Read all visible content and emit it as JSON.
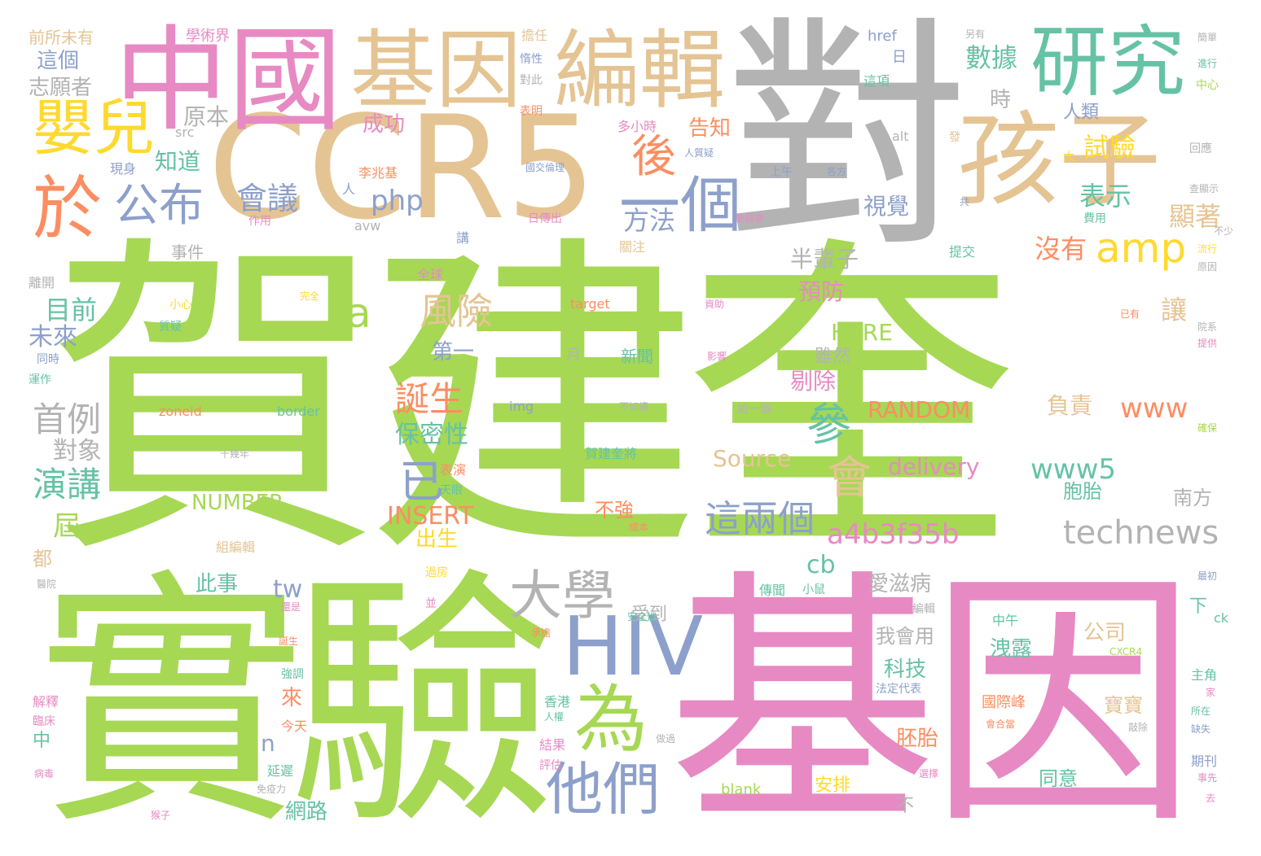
{
  "words": [
    {
      "text": "賀建奎",
      "weight": 100,
      "color": "#a6d854"
    },
    {
      "text": "基因",
      "weight": 62,
      "color": "#e78ac3"
    },
    {
      "text": "實驗",
      "weight": 60,
      "color": "#a6d854"
    },
    {
      "text": "對",
      "weight": 55,
      "color": "#b3b3b3"
    },
    {
      "text": "CCR5",
      "weight": 45,
      "color": "#e5c494"
    },
    {
      "text": "中國",
      "weight": 34,
      "color": "#e78ac3"
    },
    {
      "text": "基因",
      "weight": 30,
      "color": "#e5c494"
    },
    {
      "text": "編輯",
      "weight": 30,
      "color": "#e5c494"
    },
    {
      "text": "孩子",
      "weight": 28,
      "color": "#e5c494"
    },
    {
      "text": "研究",
      "weight": 25,
      "color": "#66c2a5"
    },
    {
      "text": "嬰兒",
      "weight": 20,
      "color": "#ffd92f"
    },
    {
      "text": "於",
      "weight": 20,
      "color": "#fc8d62"
    },
    {
      "text": "一個",
      "weight": 22,
      "color": "#8da0cb"
    },
    {
      "text": "HIV",
      "weight": 24,
      "color": "#8da0cb"
    },
    {
      "text": "為",
      "weight": 22,
      "color": "#a6d854"
    },
    {
      "text": "大學",
      "weight": 18,
      "color": "#b3b3b3"
    },
    {
      "text": "他們",
      "weight": 17,
      "color": "#8da0cb"
    },
    {
      "text": "公布",
      "weight": 14,
      "color": "#8da0cb"
    },
    {
      "text": "後",
      "weight": 15,
      "color": "#fc8d62"
    },
    {
      "text": "amp",
      "weight": 15,
      "color": "#ffd92f"
    },
    {
      "text": "參",
      "weight": 13,
      "color": "#66c2a5"
    },
    {
      "text": "會",
      "weight": 13,
      "color": "#e5c494"
    },
    {
      "text": "已",
      "weight": 13,
      "color": "#8da0cb"
    },
    {
      "text": "風險",
      "weight": 11,
      "color": "#e5c494"
    },
    {
      "text": "a",
      "weight": 12,
      "color": "#a6d854"
    },
    {
      "text": "這兩個",
      "weight": 12,
      "color": "#8da0cb"
    },
    {
      "text": "technews",
      "weight": 11,
      "color": "#b3b3b3"
    },
    {
      "text": "a4b3f35b",
      "weight": 9,
      "color": "#e78ac3"
    },
    {
      "text": "www5",
      "weight": 9,
      "color": "#66c2a5"
    },
    {
      "text": "www",
      "weight": 9,
      "color": "#fc8d62"
    },
    {
      "text": "誕生",
      "weight": 10,
      "color": "#fc8d62"
    },
    {
      "text": "首例",
      "weight": 11,
      "color": "#b3b3b3"
    },
    {
      "text": "演講",
      "weight": 11,
      "color": "#66c2a5"
    },
    {
      "text": "會議",
      "weight": 10,
      "color": "#8da0cb"
    },
    {
      "text": "php",
      "weight": 9,
      "color": "#8da0cb"
    },
    {
      "text": "方法",
      "weight": 9,
      "color": "#8da0cb"
    },
    {
      "text": "數據",
      "weight": 9,
      "color": "#66c2a5"
    },
    {
      "text": "試驗",
      "weight": 9,
      "color": "#ffd92f"
    },
    {
      "text": "表示",
      "weight": 9,
      "color": "#66c2a5"
    },
    {
      "text": "顯著",
      "weight": 9,
      "color": "#e5c494"
    },
    {
      "text": "沒有",
      "weight": 9,
      "color": "#fc8d62"
    },
    {
      "text": "讓",
      "weight": 9,
      "color": "#e5c494"
    },
    {
      "text": "目前",
      "weight": 9,
      "color": "#66c2a5"
    },
    {
      "text": "未來",
      "weight": 9,
      "color": "#8da0cb"
    },
    {
      "text": "對象",
      "weight": 8,
      "color": "#b3b3b3"
    },
    {
      "text": "屆",
      "weight": 9,
      "color": "#a6d854"
    },
    {
      "text": "知道",
      "weight": 8,
      "color": "#66c2a5"
    },
    {
      "text": "原本",
      "weight": 8,
      "color": "#b3b3b3"
    },
    {
      "text": "這個",
      "weight": 7,
      "color": "#8da0cb"
    },
    {
      "text": "志願者",
      "weight": 7,
      "color": "#b3b3b3"
    },
    {
      "text": "前所未有",
      "weight": 6,
      "color": "#e5c494"
    },
    {
      "text": "學術界",
      "weight": 5,
      "color": "#e78ac3"
    },
    {
      "text": "成功",
      "weight": 7,
      "color": "#e78ac3"
    },
    {
      "text": "告知",
      "weight": 7,
      "color": "#fc8d62"
    },
    {
      "text": "時",
      "weight": 7,
      "color": "#b3b3b3"
    },
    {
      "text": "人類",
      "weight": 6,
      "color": "#8da0cb"
    },
    {
      "text": "視覺",
      "weight": 7,
      "color": "#8da0cb"
    },
    {
      "text": "半輩子",
      "weight": 7,
      "color": "#b3b3b3"
    },
    {
      "text": "預防",
      "weight": 7,
      "color": "#e78ac3"
    },
    {
      "text": "HERE",
      "weight": 7,
      "color": "#a6d854"
    },
    {
      "text": "剔除",
      "weight": 7,
      "color": "#e78ac3"
    },
    {
      "text": "雖然",
      "weight": 6,
      "color": "#b3b3b3"
    },
    {
      "text": "RANDOM",
      "weight": 8,
      "color": "#fc8d62"
    },
    {
      "text": "負責",
      "weight": 7,
      "color": "#e5c494"
    },
    {
      "text": "保密性",
      "weight": 8,
      "color": "#66c2a5"
    },
    {
      "text": "第一",
      "weight": 7,
      "color": "#8da0cb"
    },
    {
      "text": "delivery",
      "weight": 8,
      "color": "#e78ac3"
    },
    {
      "text": "Source",
      "weight": 8,
      "color": "#e5c494"
    },
    {
      "text": "INSERT",
      "weight": 8,
      "color": "#fc8d62"
    },
    {
      "text": "NUMBER",
      "weight": 7,
      "color": "#a6d854"
    },
    {
      "text": "出生",
      "weight": 7,
      "color": "#ffd92f"
    },
    {
      "text": "不強",
      "weight": 7,
      "color": "#fc8d62"
    },
    {
      "text": "胞胎",
      "weight": 7,
      "color": "#66c2a5"
    },
    {
      "text": "南方",
      "weight": 7,
      "color": "#b3b3b3"
    },
    {
      "text": "cb",
      "weight": 8,
      "color": "#66c2a5"
    },
    {
      "text": "此事",
      "weight": 7,
      "color": "#66c2a5"
    },
    {
      "text": "tw",
      "weight": 8,
      "color": "#8da0cb"
    },
    {
      "text": "愛滋病",
      "weight": 7,
      "color": "#b3b3b3"
    },
    {
      "text": "我會用",
      "weight": 7,
      "color": "#b3b3b3"
    },
    {
      "text": "公司",
      "weight": 7,
      "color": "#e5c494"
    },
    {
      "text": "洩露",
      "weight": 7,
      "color": "#66c2a5"
    },
    {
      "text": "科技",
      "weight": 7,
      "color": "#66c2a5"
    },
    {
      "text": "來",
      "weight": 7,
      "color": "#fc8d62"
    },
    {
      "text": "寶寶",
      "weight": 7,
      "color": "#e5c494"
    },
    {
      "text": "胚胎",
      "weight": 7,
      "color": "#fc8d62"
    },
    {
      "text": "n",
      "weight": 7,
      "color": "#8da0cb"
    },
    {
      "text": "同意",
      "weight": 7,
      "color": "#66c2a5"
    },
    {
      "text": "不",
      "weight": 7,
      "color": "#b3b3b3"
    },
    {
      "text": "網路",
      "weight": 7,
      "color": "#66c2a5"
    },
    {
      "text": "都",
      "weight": 6,
      "color": "#e5c494"
    },
    {
      "text": "中",
      "weight": 6,
      "color": "#66c2a5"
    },
    {
      "text": "安排",
      "weight": 6,
      "color": "#ffd92f"
    },
    {
      "text": "下",
      "weight": 6,
      "color": "#66c2a5"
    },
    {
      "text": "受到",
      "weight": 6,
      "color": "#b3b3b3"
    },
    {
      "text": "事件",
      "weight": 5,
      "color": "#b3b3b3"
    },
    {
      "text": "現身",
      "weight": 5,
      "color": "#8da0cb"
    },
    {
      "text": "作用",
      "weight": 4,
      "color": "#e78ac3"
    },
    {
      "text": "src",
      "weight": 4,
      "color": "#b3b3b3"
    },
    {
      "text": "人",
      "weight": 4,
      "color": "#8da0cb"
    },
    {
      "text": "avw",
      "weight": 4,
      "color": "#b3b3b3"
    },
    {
      "text": "李兆基",
      "weight": 4,
      "color": "#fc8d62"
    },
    {
      "text": "國交倫理",
      "weight": 3,
      "color": "#8da0cb"
    },
    {
      "text": "多小時",
      "weight": 4,
      "color": "#e78ac3"
    },
    {
      "text": "擔任",
      "weight": 4,
      "color": "#e5c494"
    },
    {
      "text": "惰性",
      "weight": 4,
      "color": "#8da0cb"
    },
    {
      "text": "對此",
      "weight": 4,
      "color": "#b3b3b3"
    },
    {
      "text": "表明",
      "weight": 4,
      "color": "#fc8d62"
    },
    {
      "text": "href",
      "weight": 5,
      "color": "#8da0cb"
    },
    {
      "text": "日",
      "weight": 5,
      "color": "#8da0cb"
    },
    {
      "text": "這項",
      "weight": 4,
      "color": "#66c2a5"
    },
    {
      "text": "另有",
      "weight": 3,
      "color": "#b3b3b3"
    },
    {
      "text": "簡單",
      "weight": 3,
      "color": "#b3b3b3"
    },
    {
      "text": "進行",
      "weight": 3,
      "color": "#66c2a5"
    },
    {
      "text": "中心",
      "weight": 3,
      "color": "#a6d854"
    },
    {
      "text": "回應",
      "weight": 3,
      "color": "#b3b3b3"
    },
    {
      "text": "查顯示",
      "weight": 3,
      "color": "#b3b3b3"
    },
    {
      "text": "費用",
      "weight": 3,
      "color": "#66c2a5"
    },
    {
      "text": "不少",
      "weight": 3,
      "color": "#b3b3b3"
    },
    {
      "text": "流行",
      "weight": 3,
      "color": "#ffd92f"
    },
    {
      "text": "原因",
      "weight": 3,
      "color": "#b3b3b3"
    },
    {
      "text": "院系",
      "weight": 3,
      "color": "#b3b3b3"
    },
    {
      "text": "提供",
      "weight": 3,
      "color": "#e78ac3"
    },
    {
      "text": "確保",
      "weight": 3,
      "color": "#a6d854"
    },
    {
      "text": "最初",
      "weight": 3,
      "color": "#8da0cb"
    },
    {
      "text": "ck",
      "weight": 4,
      "color": "#66c2a5"
    },
    {
      "text": "主角",
      "weight": 4,
      "color": "#66c2a5"
    },
    {
      "text": "家",
      "weight": 3,
      "color": "#e78ac3"
    },
    {
      "text": "所在",
      "weight": 3,
      "color": "#66c2a5"
    },
    {
      "text": "缺失",
      "weight": 3,
      "color": "#8da0cb"
    },
    {
      "text": "期刊",
      "weight": 4,
      "color": "#8da0cb"
    },
    {
      "text": "事先",
      "weight": 3,
      "color": "#e78ac3"
    },
    {
      "text": "去",
      "weight": 3,
      "color": "#e78ac3"
    },
    {
      "text": "alt",
      "weight": 4,
      "color": "#b3b3b3"
    },
    {
      "text": "發",
      "weight": 4,
      "color": "#e5c494"
    },
    {
      "text": "大",
      "weight": 4,
      "color": "#ffd92f"
    },
    {
      "text": "人質疑",
      "weight": 3,
      "color": "#8da0cb"
    },
    {
      "text": "上午",
      "weight": 4,
      "color": "#8da0cb"
    },
    {
      "text": "各方",
      "weight": 3,
      "color": "#8da0cb"
    },
    {
      "text": "委員會",
      "weight": 3,
      "color": "#e78ac3"
    },
    {
      "text": "日傳出",
      "weight": 4,
      "color": "#e78ac3"
    },
    {
      "text": "講",
      "weight": 4,
      "color": "#8da0cb"
    },
    {
      "text": "關注",
      "weight": 4,
      "color": "#e5c494"
    },
    {
      "text": "提交",
      "weight": 4,
      "color": "#66c2a5"
    },
    {
      "text": "共",
      "weight": 3,
      "color": "#8da0cb"
    },
    {
      "text": "已有",
      "weight": 3,
      "color": "#fc8d62"
    },
    {
      "text": "全球",
      "weight": 4,
      "color": "#e78ac3"
    },
    {
      "text": "離開",
      "weight": 4,
      "color": "#b3b3b3"
    },
    {
      "text": "完全",
      "weight": 3,
      "color": "#ffd92f"
    },
    {
      "text": "小心",
      "weight": 4,
      "color": "#ffd92f"
    },
    {
      "text": "質疑",
      "weight": 4,
      "color": "#66c2a5"
    },
    {
      "text": "target",
      "weight": 4,
      "color": "#fc8d62"
    },
    {
      "text": "資助",
      "weight": 3,
      "color": "#e78ac3"
    },
    {
      "text": "同時",
      "weight": 3,
      "color": "#8da0cb"
    },
    {
      "text": "運作",
      "weight": 3,
      "color": "#66c2a5"
    },
    {
      "text": "月",
      "weight": 4,
      "color": "#b3b3b3"
    },
    {
      "text": "新聞",
      "weight": 5,
      "color": "#66c2a5"
    },
    {
      "text": "影響",
      "weight": 3,
      "color": "#e78ac3"
    },
    {
      "text": "zoneid",
      "weight": 4,
      "color": "#fc8d62"
    },
    {
      "text": "border",
      "weight": 4,
      "color": "#66c2a5"
    },
    {
      "text": "img",
      "weight": 4,
      "color": "#8da0cb"
    },
    {
      "text": "不知情",
      "weight": 3,
      "color": "#b3b3b3"
    },
    {
      "text": "給一個",
      "weight": 3,
      "color": "#b3b3b3"
    },
    {
      "text": "十幾年",
      "weight": 3,
      "color": "#b3b3b3"
    },
    {
      "text": "賀建奎將",
      "weight": 4,
      "color": "#66c2a5"
    },
    {
      "text": "表演",
      "weight": 4,
      "color": "#fc8d62"
    },
    {
      "text": "天眼",
      "weight": 3,
      "color": "#66c2a5"
    },
    {
      "text": "成本",
      "weight": 3,
      "color": "#fc8d62"
    },
    {
      "text": "組編輯",
      "weight": 4,
      "color": "#e5c494"
    },
    {
      "text": "醫院",
      "weight": 3,
      "color": "#b3b3b3"
    },
    {
      "text": "過房",
      "weight": 3,
      "color": "#ffd92f"
    },
    {
      "text": "傳聞",
      "weight": 4,
      "color": "#66c2a5"
    },
    {
      "text": "小鼠",
      "weight": 3,
      "color": "#66c2a5"
    },
    {
      "text": "還是",
      "weight": 3,
      "color": "#e78ac3"
    },
    {
      "text": "安全性",
      "weight": 3,
      "color": "#66c2a5"
    },
    {
      "text": "編輯",
      "weight": 3,
      "color": "#b3b3b3"
    },
    {
      "text": "並",
      "weight": 3,
      "color": "#e78ac3"
    },
    {
      "text": "承擔",
      "weight": 3,
      "color": "#fc8d62"
    },
    {
      "text": "中午",
      "weight": 4,
      "color": "#66c2a5"
    },
    {
      "text": "CXCR4",
      "weight": 3,
      "color": "#a6d854"
    },
    {
      "text": "誕生",
      "weight": 3,
      "color": "#fc8d62"
    },
    {
      "text": "強調",
      "weight": 3,
      "color": "#66c2a5"
    },
    {
      "text": "解釋",
      "weight": 4,
      "color": "#e78ac3"
    },
    {
      "text": "臨床",
      "weight": 3,
      "color": "#e78ac3"
    },
    {
      "text": "今天",
      "weight": 4,
      "color": "#fc8d62"
    },
    {
      "text": "法定代表",
      "weight": 3,
      "color": "#8da0cb"
    },
    {
      "text": "香港",
      "weight": 4,
      "color": "#66c2a5"
    },
    {
      "text": "人權",
      "weight": 3,
      "color": "#66c2a5"
    },
    {
      "text": "國際峰",
      "weight": 4,
      "color": "#fc8d62"
    },
    {
      "text": "結果",
      "weight": 4,
      "color": "#e78ac3"
    },
    {
      "text": "做過",
      "weight": 3,
      "color": "#b3b3b3"
    },
    {
      "text": "會合當",
      "weight": 3,
      "color": "#fc8d62"
    },
    {
      "text": "敲除",
      "weight": 3,
      "color": "#b3b3b3"
    },
    {
      "text": "延遲",
      "weight": 4,
      "color": "#66c2a5"
    },
    {
      "text": "病毒",
      "weight": 3,
      "color": "#e78ac3"
    },
    {
      "text": "免疫力",
      "weight": 3,
      "color": "#b3b3b3"
    },
    {
      "text": "評估",
      "weight": 3,
      "color": "#e78ac3"
    },
    {
      "text": "blank",
      "weight": 4,
      "color": "#a6d854"
    },
    {
      "text": "選擇",
      "weight": 3,
      "color": "#e78ac3"
    },
    {
      "text": "猴子",
      "weight": 3,
      "color": "#e78ac3"
    }
  ]
}
